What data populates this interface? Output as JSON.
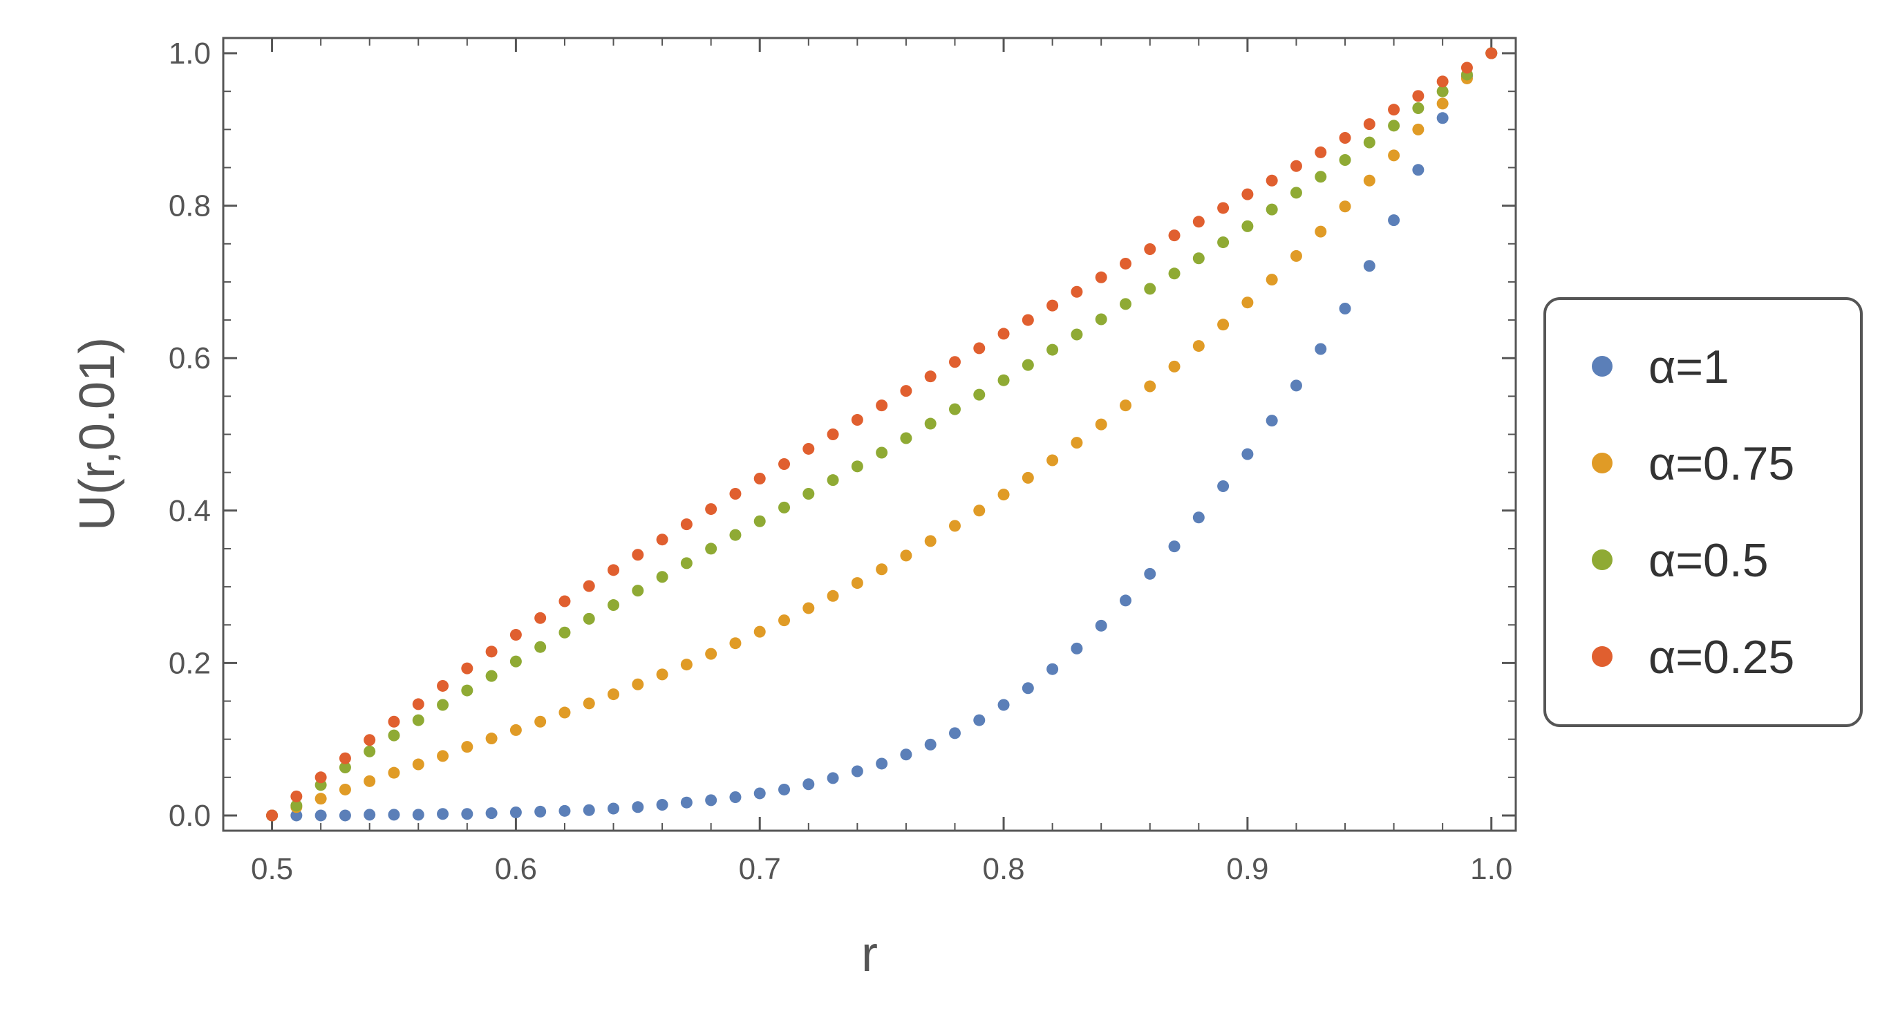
{
  "chart_data": {
    "type": "scatter",
    "xlabel": "r",
    "ylabel": "U(r,0.01)",
    "xlim": [
      0.48,
      1.01
    ],
    "ylim": [
      -0.02,
      1.02
    ],
    "xticks": [
      "0.5",
      "0.6",
      "0.7",
      "0.8",
      "0.9",
      "1.0"
    ],
    "yticks": [
      "0.0",
      "0.2",
      "0.4",
      "0.6",
      "0.8",
      "1.0"
    ],
    "grid": false,
    "legend_position": "right",
    "x": [
      0.5,
      0.51,
      0.52,
      0.53,
      0.54,
      0.55,
      0.56,
      0.57,
      0.58,
      0.59,
      0.6,
      0.61,
      0.62,
      0.63,
      0.64,
      0.65,
      0.66,
      0.67,
      0.68,
      0.69,
      0.7,
      0.71,
      0.72,
      0.73,
      0.74,
      0.75,
      0.76,
      0.77,
      0.78,
      0.79,
      0.8,
      0.81,
      0.82,
      0.83,
      0.84,
      0.85,
      0.86,
      0.87,
      0.88,
      0.89,
      0.9,
      0.91,
      0.92,
      0.93,
      0.94,
      0.95,
      0.96,
      0.97,
      0.98,
      0.99,
      1.0
    ],
    "series": [
      {
        "name": "α=1",
        "color": "#5b7fb8",
        "values": [
          0.0,
          0.0,
          0.0,
          0.0,
          0.001,
          0.001,
          0.001,
          0.002,
          0.002,
          0.003,
          0.004,
          0.005,
          0.006,
          0.007,
          0.009,
          0.011,
          0.014,
          0.017,
          0.02,
          0.024,
          0.029,
          0.034,
          0.041,
          0.049,
          0.058,
          0.068,
          0.08,
          0.093,
          0.108,
          0.125,
          0.145,
          0.167,
          0.192,
          0.219,
          0.249,
          0.282,
          0.317,
          0.353,
          0.391,
          0.432,
          0.474,
          0.518,
          0.564,
          0.612,
          0.665,
          0.721,
          0.781,
          0.847,
          0.915,
          0.97,
          1.0
        ]
      },
      {
        "name": "α=0.75",
        "color": "#e09b26",
        "values": [
          0.0,
          0.011,
          0.022,
          0.034,
          0.045,
          0.056,
          0.067,
          0.078,
          0.09,
          0.101,
          0.112,
          0.123,
          0.135,
          0.147,
          0.159,
          0.172,
          0.185,
          0.198,
          0.212,
          0.226,
          0.241,
          0.256,
          0.272,
          0.288,
          0.305,
          0.323,
          0.341,
          0.36,
          0.38,
          0.4,
          0.421,
          0.443,
          0.466,
          0.489,
          0.513,
          0.538,
          0.563,
          0.589,
          0.616,
          0.644,
          0.673,
          0.703,
          0.734,
          0.766,
          0.799,
          0.833,
          0.866,
          0.9,
          0.934,
          0.967,
          1.0
        ]
      },
      {
        "name": "α=0.5",
        "color": "#8faa34",
        "values": [
          0.0,
          0.013,
          0.04,
          0.063,
          0.084,
          0.105,
          0.125,
          0.145,
          0.164,
          0.183,
          0.202,
          0.221,
          0.24,
          0.258,
          0.276,
          0.295,
          0.313,
          0.331,
          0.35,
          0.368,
          0.386,
          0.404,
          0.422,
          0.44,
          0.458,
          0.476,
          0.495,
          0.514,
          0.533,
          0.552,
          0.571,
          0.591,
          0.611,
          0.631,
          0.651,
          0.671,
          0.691,
          0.711,
          0.731,
          0.752,
          0.773,
          0.795,
          0.817,
          0.838,
          0.86,
          0.883,
          0.905,
          0.928,
          0.95,
          0.972,
          1.0
        ]
      },
      {
        "name": "α=0.25",
        "color": "#e05f2f",
        "values": [
          0.0,
          0.025,
          0.05,
          0.075,
          0.099,
          0.123,
          0.146,
          0.17,
          0.193,
          0.215,
          0.237,
          0.259,
          0.281,
          0.301,
          0.322,
          0.342,
          0.362,
          0.382,
          0.402,
          0.422,
          0.442,
          0.461,
          0.481,
          0.5,
          0.519,
          0.538,
          0.557,
          0.576,
          0.595,
          0.613,
          0.632,
          0.65,
          0.669,
          0.687,
          0.706,
          0.724,
          0.743,
          0.761,
          0.779,
          0.797,
          0.815,
          0.833,
          0.852,
          0.87,
          0.889,
          0.907,
          0.926,
          0.944,
          0.963,
          0.981,
          1.0
        ]
      }
    ]
  }
}
